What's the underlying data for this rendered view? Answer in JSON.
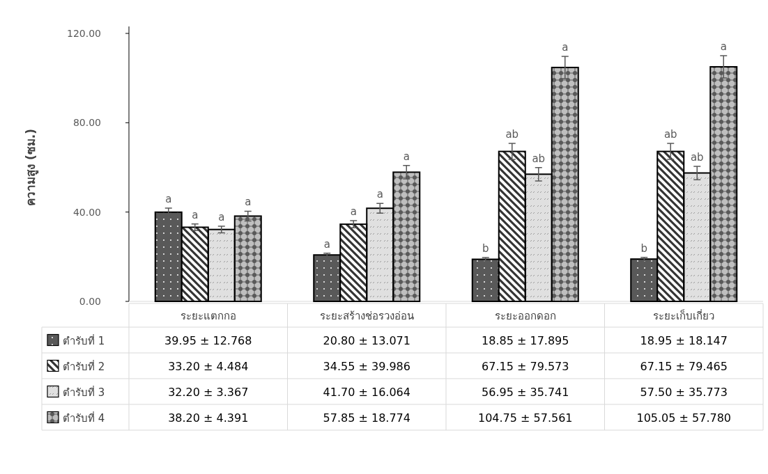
{
  "chart_data": {
    "type": "bar",
    "ylabel": "ความสูง (ซม.)",
    "categories": [
      "ระยะแตกกอ",
      "ระยะสร้างช่อรวงอ่อน",
      "ระยะออกดอก",
      "ระยะเก็บเกี่ยว"
    ],
    "series": [
      {
        "name": "ตำรับที่ 1",
        "color": "#595959",
        "values": [
          39.95,
          20.8,
          18.85,
          18.95
        ],
        "errors": [
          1.8,
          0.8,
          0.8,
          0.8
        ],
        "value_labels": [
          "39.95 ± 12.768",
          "20.80 ± 13.071",
          "18.85 ± 17.895",
          "18.95 ± 18.147"
        ]
      },
      {
        "name": "ตำรับที่ 2",
        "color": "#333333",
        "values": [
          33.2,
          34.55,
          67.15,
          67.15
        ],
        "errors": [
          1.5,
          1.6,
          3.6,
          3.6
        ],
        "value_labels": [
          "33.20 ± 4.484",
          "34.55 ± 39.986",
          "67.15 ± 79.573",
          "67.15 ± 79.465"
        ]
      },
      {
        "name": "ตำรับที่ 3",
        "color": "#e0e0e0",
        "values": [
          32.2,
          41.7,
          56.95,
          57.5
        ],
        "errors": [
          1.5,
          2.2,
          3.0,
          3.0
        ],
        "value_labels": [
          "32.20 ± 3.367",
          "41.70 ± 16.064",
          "56.95 ± 35.741",
          "57.50 ± 35.773"
        ]
      },
      {
        "name": "ตำรับที่ 4",
        "color": "#bfbfbf",
        "values": [
          38.2,
          57.85,
          104.75,
          105.05
        ],
        "errors": [
          2.2,
          3.0,
          5.0,
          5.0
        ],
        "value_labels": [
          "38.20 ± 4.391",
          "57.85 ± 18.774",
          "104.75 ± 57.561",
          "105.05 ± 57.780"
        ]
      }
    ],
    "ylim": [
      0,
      120
    ],
    "yticks": [
      {
        "value": 0,
        "label": "0.00"
      },
      {
        "value": 40,
        "label": "40.00"
      },
      {
        "value": 80,
        "label": "80.00"
      },
      {
        "value": 120,
        "label": "120.00"
      }
    ],
    "grid": false,
    "legend": "bottom left",
    "annotations": [
      "a",
      "a",
      "a",
      "a",
      "a",
      "a",
      "a",
      "a",
      "b",
      "ab",
      "ab",
      "a",
      "b",
      "ab",
      "ab",
      "a"
    ]
  }
}
